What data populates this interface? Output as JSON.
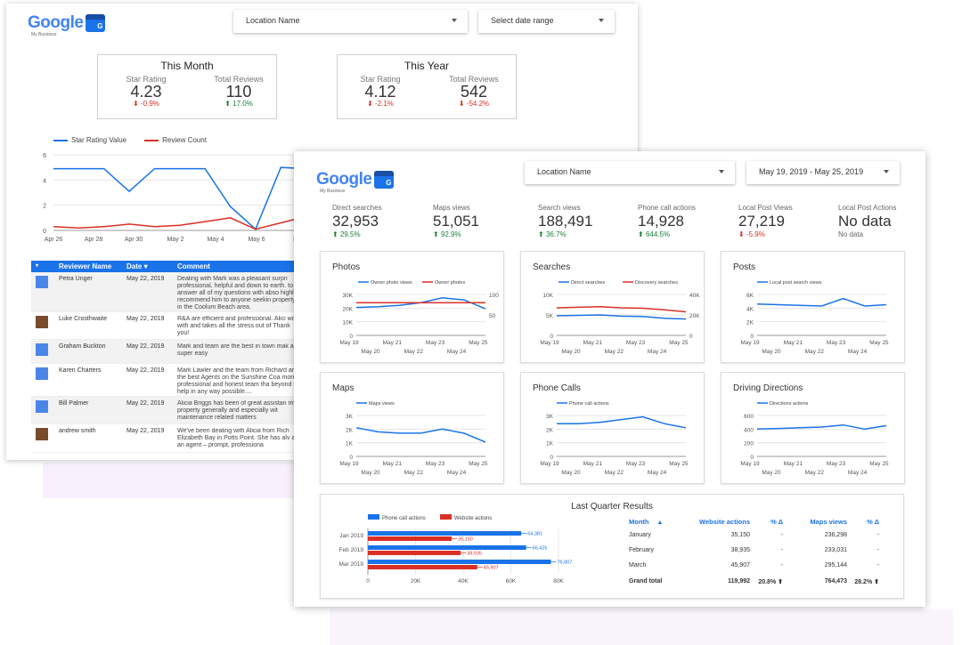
{
  "back_dashboard": {
    "logo": {
      "wordmark": "Google",
      "sub": "My Business",
      "badge": "G"
    },
    "location_dropdown": "Location Name",
    "date_dropdown": "Select date range",
    "this_month": {
      "title": "This Month",
      "star_label": "Star Rating",
      "star_value": "4.23",
      "star_change": "-0.9%",
      "reviews_label": "Total Reviews",
      "reviews_value": "110",
      "reviews_change": "17.0%"
    },
    "this_year": {
      "title": "This Year",
      "star_label": "Star Rating",
      "star_value": "4.12",
      "star_change": "-2.1%",
      "reviews_label": "Total Reviews",
      "reviews_value": "542",
      "reviews_change": "-54.2%"
    },
    "legend": {
      "series1": "Star Rating Value",
      "series2": "Review Count"
    },
    "chart_y_ticks": [
      "6",
      "4",
      "2",
      "0"
    ],
    "chart_x_ticks": [
      "Apr 26",
      "Apr 28",
      "Apr 30",
      "May 2",
      "May 4",
      "May 6",
      "M"
    ],
    "table": {
      "headers": {
        "name": "Reviewer Name",
        "date": "Date",
        "comment": "Comment"
      },
      "rows": [
        {
          "name": "Petra Unger",
          "date": "May 22, 2019",
          "comment": "Dealing with Mark was a pleasant surpri professional, helpful and down to earth. to answer all of my questions with abso highly recommend him to anyone seekin property in the Coolum Beach area."
        },
        {
          "name": "Luke Crosthwaite",
          "date": "May 22, 2019",
          "comment": "R&A are efficient and professional. Alici work with and takes all the stress out of Thank you!"
        },
        {
          "name": "Graham Buckton",
          "date": "May 22, 2019",
          "comment": "Mark and team are the best in town mak are super easy"
        },
        {
          "name": "Karen Charters",
          "date": "May 22, 2019",
          "comment": "Mark Lawler and the team from Richard are the best Agents on the Sunshine Coa more professional and honest team tha beyond to help in any way possible...."
        },
        {
          "name": "Bill Palmer",
          "date": "May 22, 2019",
          "comment": "Alicia Briggs has been of great assistan my property generally and especially wit maintenance related matters"
        },
        {
          "name": "andrew smith",
          "date": "May 22, 2019",
          "comment": "We've been dealing with Alicia from Rich Elizabeth Bay in Potts Point. She has alv as an agent – prompt, professiona"
        }
      ]
    }
  },
  "front_dashboard": {
    "logo": {
      "wordmark": "Google",
      "sub": "My Business",
      "badge": "G"
    },
    "location_dropdown": "Location Name",
    "date_dropdown": "May 19, 2019 - May 25, 2019",
    "metrics": [
      {
        "label": "Direct searches",
        "value": "32,953",
        "change": "29.5%",
        "trend": "up"
      },
      {
        "label": "Maps views",
        "value": "51,051",
        "change": "92.9%",
        "trend": "up"
      },
      {
        "label": "Search views",
        "value": "188,491",
        "change": "36.7%",
        "trend": "up"
      },
      {
        "label": "Phone call actions",
        "value": "14,928",
        "change": "644.5%",
        "trend": "up"
      },
      {
        "label": "Local Post Views",
        "value": "27,219",
        "change": "-5.9%",
        "trend": "down"
      },
      {
        "label": "Local Post Actions",
        "value": "No data",
        "change": "No data",
        "trend": "none"
      }
    ],
    "panels": [
      {
        "title": "Photos",
        "legend": [
          "Owner photo views",
          "Owner photos"
        ],
        "y_left": [
          "30K",
          "20K",
          "10K",
          "0"
        ],
        "y_right": [
          "100",
          "50"
        ]
      },
      {
        "title": "Searches",
        "legend": [
          "Direct searches",
          "Discovery searches"
        ],
        "y_left": [
          "10K",
          "5K",
          "0"
        ],
        "y_right": [
          "40K",
          "20K",
          "0"
        ]
      },
      {
        "title": "Posts",
        "legend": [
          "Local post search views"
        ],
        "y_left": [
          "6K",
          "4K",
          "2K",
          "0"
        ]
      },
      {
        "title": "Maps",
        "legend": [
          "Maps views"
        ],
        "y_left": [
          "3K",
          "2K",
          "1K",
          "0"
        ]
      },
      {
        "title": "Phone Calls",
        "legend": [
          "Phone call actions"
        ],
        "y_left": [
          "3K",
          "2K",
          "1K",
          "0"
        ]
      },
      {
        "title": "Driving Directions",
        "legend": [
          "Directions actions"
        ],
        "y_left": [
          "600",
          "400",
          "200",
          "0"
        ]
      }
    ],
    "x_ticks_top": [
      "May 19",
      "May 21",
      "May 23",
      "May 25"
    ],
    "x_ticks_bottom": [
      "May 20",
      "May 22",
      "May 24"
    ],
    "last_quarter": {
      "title": "Last Quarter Results",
      "legend": [
        "Phone call actions",
        "Website actions"
      ],
      "x_ticks": [
        "0",
        "20K",
        "40K",
        "60K",
        "80K"
      ],
      "table": {
        "headers": [
          "Month",
          "Website actions",
          "% Δ",
          "Maps views",
          "% Δ"
        ],
        "rows": [
          [
            "January",
            "35,150",
            "-",
            "236,298",
            "-"
          ],
          [
            "February",
            "38,935",
            "-",
            "233,031",
            "-"
          ],
          [
            "March",
            "45,907",
            "-",
            "295,144",
            "-"
          ]
        ],
        "total": [
          "Grand total",
          "119,992",
          "20.8%",
          "764,473",
          "28.2%"
        ]
      }
    }
  },
  "colors": {
    "blue": "#1a73e8",
    "red": "#d93025",
    "green": "#188038"
  },
  "chart_data": [
    {
      "type": "line",
      "title": "",
      "x": [
        "Apr 26",
        "Apr 27",
        "Apr 28",
        "Apr 29",
        "Apr 30",
        "May 1",
        "May 2",
        "May 3",
        "May 4",
        "May 5",
        "May 6",
        "May 7"
      ],
      "series": [
        {
          "name": "Star Rating Value",
          "values": [
            4.9,
            4.9,
            4.9,
            3.1,
            4.9,
            4.9,
            4.9,
            1.9,
            0.1,
            5.0,
            4.9,
            3.9
          ]
        },
        {
          "name": "Review Count",
          "values": [
            0.3,
            0.2,
            0.3,
            0.5,
            0.3,
            0.4,
            0.7,
            1.0,
            0.1,
            0.6,
            1.1,
            1.6
          ]
        }
      ],
      "ylim": [
        0,
        6
      ]
    },
    {
      "type": "bar",
      "title": "Last Quarter Results",
      "categories": [
        "Jan 2019",
        "Feb 2019",
        "Mar 2019"
      ],
      "series": [
        {
          "name": "Phone call actions",
          "values": [
            64381,
            66425,
            76807
          ]
        },
        {
          "name": "Website actions",
          "values": [
            35150,
            38935,
            45907
          ]
        }
      ],
      "xlim": [
        0,
        80000
      ],
      "value_labels": [
        [
          "64,381",
          "66,425",
          "76,807"
        ],
        [
          "35,150",
          "38,935",
          "45,907"
        ]
      ]
    },
    {
      "type": "line",
      "title": "Photos",
      "x": [
        "May 19",
        "May 20",
        "May 21",
        "May 22",
        "May 23",
        "May 24",
        "May 25"
      ],
      "series": [
        {
          "name": "Owner photo views",
          "values": [
            20500,
            21000,
            22000,
            24000,
            27500,
            26000,
            19500
          ]
        },
        {
          "name": "Owner photos",
          "values": [
            80,
            80,
            80,
            80,
            80,
            80,
            80
          ]
        }
      ],
      "ylim": [
        0,
        30000
      ]
    },
    {
      "type": "line",
      "title": "Searches",
      "x": [
        "May 19",
        "May 20",
        "May 21",
        "May 22",
        "May 23",
        "May 24",
        "May 25"
      ],
      "series": [
        {
          "name": "Direct searches",
          "values": [
            4800,
            4900,
            5000,
            4700,
            4600,
            4200,
            4000
          ]
        },
        {
          "name": "Discovery searches",
          "values": [
            27000,
            27500,
            28000,
            27000,
            26500,
            25000,
            23000
          ]
        }
      ],
      "ylim": [
        0,
        10000
      ]
    },
    {
      "type": "line",
      "title": "Posts",
      "x": [
        "May 19",
        "May 20",
        "May 21",
        "May 22",
        "May 23",
        "May 24",
        "May 25"
      ],
      "series": [
        {
          "name": "Local post search views",
          "values": [
            4600,
            4500,
            4400,
            4300,
            5400,
            4300,
            4500
          ]
        }
      ],
      "ylim": [
        0,
        6000
      ]
    },
    {
      "type": "line",
      "title": "Maps",
      "x": [
        "May 19",
        "May 20",
        "May 21",
        "May 22",
        "May 23",
        "May 24",
        "May 25"
      ],
      "series": [
        {
          "name": "Maps views",
          "values": [
            2100,
            1800,
            1700,
            1700,
            2000,
            1700,
            1050
          ]
        }
      ],
      "ylim": [
        0,
        3000
      ]
    },
    {
      "type": "line",
      "title": "Phone Calls",
      "x": [
        "May 19",
        "May 20",
        "May 21",
        "May 22",
        "May 23",
        "May 24",
        "May 25"
      ],
      "series": [
        {
          "name": "Phone call actions",
          "values": [
            2400,
            2400,
            2500,
            2700,
            2900,
            2400,
            2100
          ]
        }
      ],
      "ylim": [
        0,
        3000
      ]
    },
    {
      "type": "line",
      "title": "Driving Directions",
      "x": [
        "May 19",
        "May 20",
        "May 21",
        "May 22",
        "May 23",
        "May 24",
        "May 25"
      ],
      "series": [
        {
          "name": "Directions actions",
          "values": [
            400,
            410,
            420,
            430,
            460,
            400,
            450
          ]
        }
      ],
      "ylim": [
        0,
        600
      ]
    }
  ]
}
